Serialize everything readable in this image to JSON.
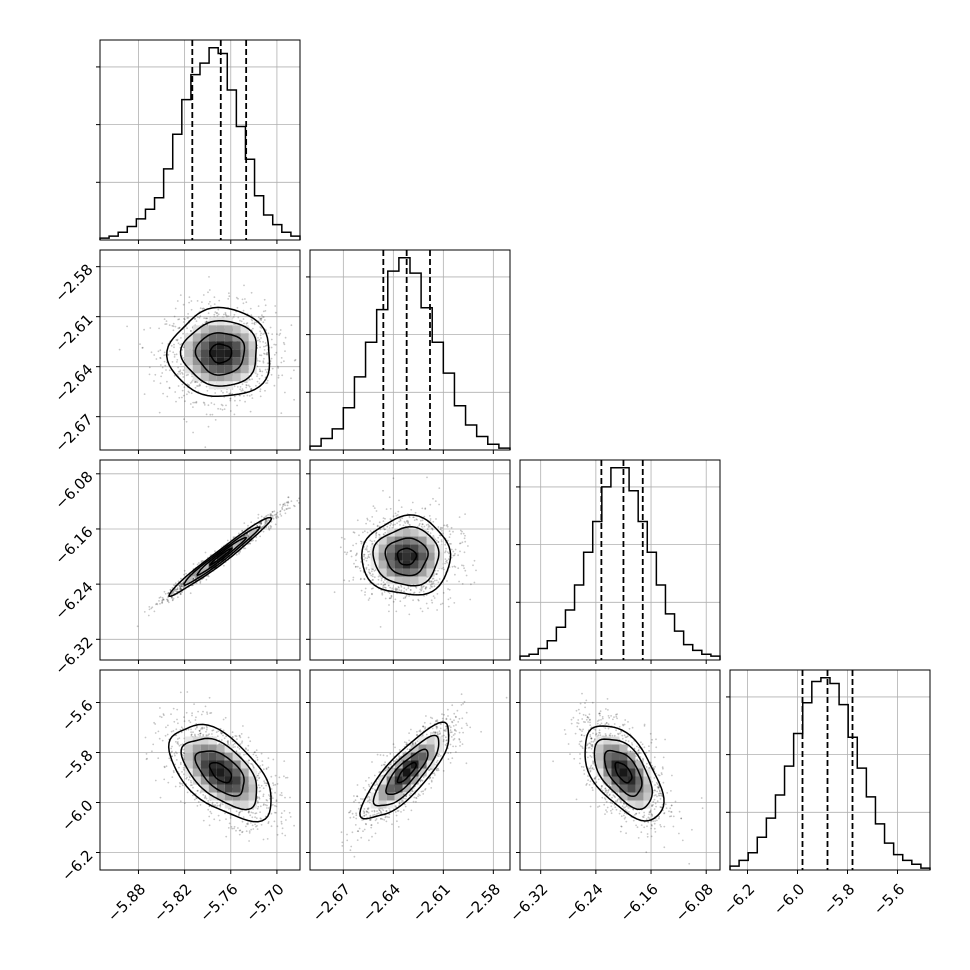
{
  "chart_data": {
    "type": "corner",
    "title": "",
    "parameters": [
      {
        "name": "",
        "range": [
          -5.93,
          -5.67
        ],
        "ticks": [
          "−5.88",
          "−5.82",
          "−5.76",
          "−5.70"
        ],
        "tick_values": [
          -5.88,
          -5.82,
          -5.76,
          -5.7
        ],
        "quantiles": [
          -5.81,
          -5.773,
          -5.74
        ]
      },
      {
        "name": "",
        "range": [
          -2.69,
          -2.57
        ],
        "ticks": [
          "−2.67",
          "−2.64",
          "−2.61",
          "−2.58"
        ],
        "tick_values": [
          -2.67,
          -2.64,
          -2.61,
          -2.58
        ],
        "quantiles": [
          -2.646,
          -2.632,
          -2.618
        ]
      },
      {
        "name": "",
        "range": [
          -6.35,
          -6.06
        ],
        "ticks": [
          "−6.32",
          "−6.24",
          "−6.16",
          "−6.08"
        ],
        "tick_values": [
          -6.32,
          -6.24,
          -6.16,
          -6.08
        ],
        "quantiles": [
          -6.232,
          -6.2,
          -6.172
        ]
      },
      {
        "name": "",
        "range": [
          -6.27,
          -5.47
        ],
        "ticks": [
          "−6.2",
          "−6.0",
          "−5.8",
          "−5.6"
        ],
        "tick_values": [
          -6.2,
          -6.0,
          -5.8,
          -5.6
        ],
        "quantiles": [
          -5.98,
          -5.88,
          -5.78
        ]
      }
    ],
    "histograms": [
      [
        1,
        2,
        4,
        7,
        11,
        16,
        22,
        37,
        55,
        73,
        86,
        92,
        100,
        97,
        78,
        59,
        42,
        23,
        13,
        8,
        4,
        2
      ],
      [
        2,
        6,
        11,
        22,
        38,
        56,
        73,
        93,
        100,
        92,
        74,
        56,
        40,
        23,
        13,
        7,
        3,
        1
      ],
      [
        2,
        3,
        6,
        10,
        17,
        26,
        39,
        56,
        72,
        90,
        100,
        100,
        88,
        72,
        56,
        39,
        24,
        15,
        8,
        5,
        3,
        2
      ],
      [
        2,
        5,
        9,
        17,
        27,
        39,
        54,
        71,
        87,
        98,
        100,
        97,
        86,
        69,
        53,
        38,
        24,
        14,
        8,
        5,
        3,
        1
      ]
    ],
    "pairs": [
      {
        "x": 0,
        "y": 1,
        "corr": 0.0
      },
      {
        "x": 0,
        "y": 2,
        "corr": 0.98
      },
      {
        "x": 0,
        "y": 3,
        "corr": -0.55
      },
      {
        "x": 1,
        "y": 2,
        "corr": 0.0
      },
      {
        "x": 1,
        "y": 3,
        "corr": 0.82
      },
      {
        "x": 2,
        "y": 3,
        "corr": -0.55
      }
    ],
    "contour_levels": [
      0.5,
      1.0,
      1.5,
      2.0
    ],
    "quantile_line_style": "dashed",
    "grid": true,
    "legend": "none"
  }
}
